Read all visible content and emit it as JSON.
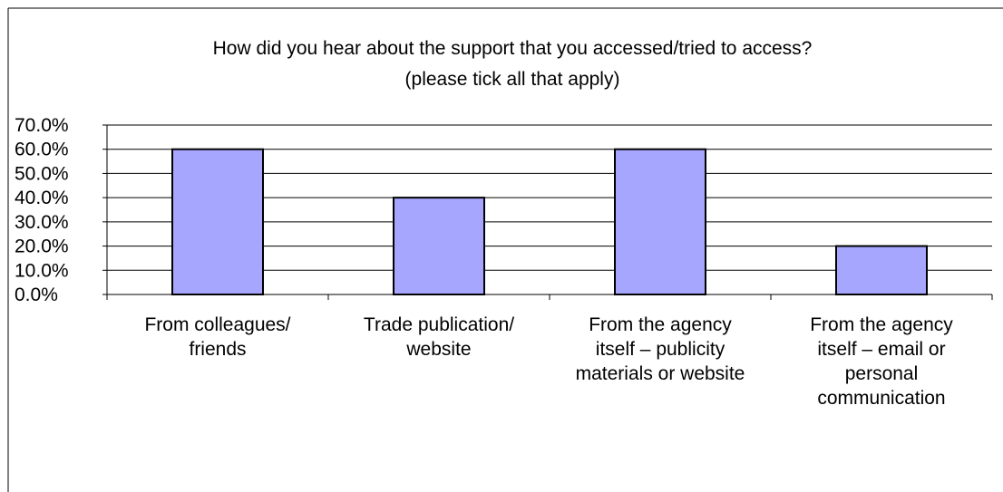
{
  "chart_data": {
    "type": "bar",
    "title": [
      "How did you hear about the support that you accessed/tried to access?",
      "(please tick all that apply)"
    ],
    "xlabel": "",
    "ylabel": "",
    "categories": [
      [
        "From colleagues/",
        "friends"
      ],
      [
        "Trade publication/",
        "website"
      ],
      [
        "From the agency",
        "itself – publicity",
        "materials or website"
      ],
      [
        "From the agency",
        "itself – email or",
        "personal",
        "communication"
      ]
    ],
    "values": [
      60.0,
      40.0,
      60.0,
      20.0
    ],
    "ylim": [
      0,
      70
    ],
    "ytick_step": 10,
    "ytick_labels": [
      "0.0%",
      "10.0%",
      "20.0%",
      "30.0%",
      "40.0%",
      "50.0%",
      "60.0%",
      "70.0%"
    ],
    "grid": true,
    "legend": "none",
    "colors": {
      "bar_fill": "#a6a6ff",
      "bar_stroke": "#000000",
      "grid": "#000000",
      "plot_background": "#ffffff"
    }
  }
}
